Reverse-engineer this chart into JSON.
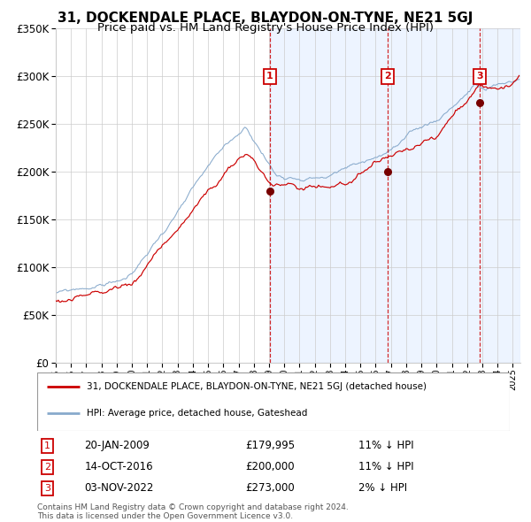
{
  "title": "31, DOCKENDALE PLACE, BLAYDON-ON-TYNE, NE21 5GJ",
  "subtitle": "Price paid vs. HM Land Registry's House Price Index (HPI)",
  "ylim": [
    0,
    350000
  ],
  "yticks": [
    0,
    50000,
    100000,
    150000,
    200000,
    250000,
    300000,
    350000
  ],
  "ytick_labels": [
    "£0",
    "£50K",
    "£100K",
    "£150K",
    "£200K",
    "£250K",
    "£300K",
    "£350K"
  ],
  "sale_years": [
    2009.055,
    2016.79,
    2022.84
  ],
  "sale_prices": [
    179995,
    200000,
    273000
  ],
  "sale_labels": [
    "1",
    "2",
    "3"
  ],
  "sale_info": [
    {
      "num": "1",
      "date": "20-JAN-2009",
      "price": "£179,995",
      "hpi": "11% ↓ HPI"
    },
    {
      "num": "2",
      "date": "14-OCT-2016",
      "price": "£200,000",
      "hpi": "11% ↓ HPI"
    },
    {
      "num": "3",
      "date": "03-NOV-2022",
      "price": "£273,000",
      "hpi": "2% ↓ HPI"
    }
  ],
  "legend_line1": "31, DOCKENDALE PLACE, BLAYDON-ON-TYNE, NE21 5GJ (detached house)",
  "legend_line2": "HPI: Average price, detached house, Gateshead",
  "footnote": "Contains HM Land Registry data © Crown copyright and database right 2024.\nThis data is licensed under the Open Government Licence v3.0.",
  "red_color": "#cc0000",
  "blue_color": "#88aacc",
  "shading_color": "#ddeeff",
  "grid_color": "#cccccc",
  "bg_color": "#ffffff",
  "xmin": 1995,
  "xmax": 2025.5,
  "title_fontsize": 11,
  "subtitle_fontsize": 9.5
}
